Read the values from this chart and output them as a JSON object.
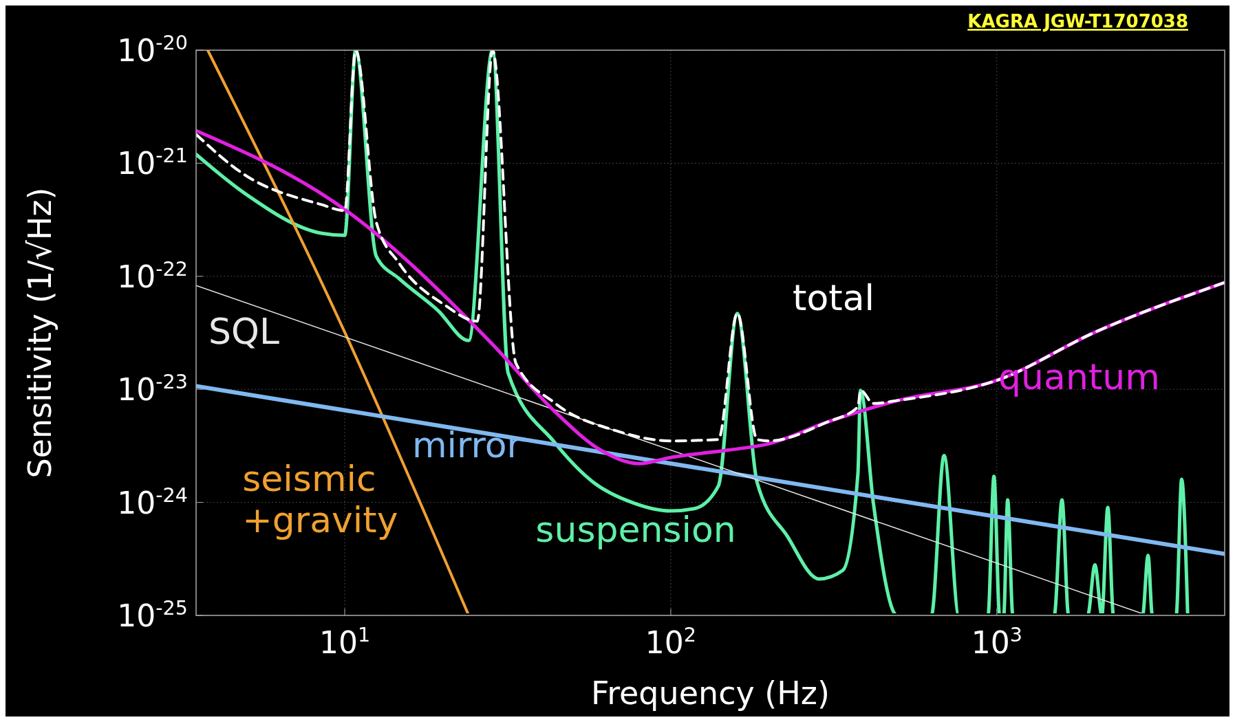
{
  "chart_data": {
    "type": "line",
    "xlabel": "Frequency (Hz)",
    "ylabel": "Sensitivity (1/√Hz)",
    "log": "xy",
    "grid": true,
    "xlim": [
      3.5,
      5000
    ],
    "xticks": [
      {
        "value": 10,
        "label": "10$^{1}$"
      },
      {
        "value": 100,
        "label": "10$^{2}$"
      },
      {
        "value": 1000,
        "label": "10$^{3}$"
      }
    ],
    "ylim": [
      1e-25,
      1e-20
    ],
    "yticks": [
      {
        "value": 1e-25,
        "label": "10$^{-25}$"
      },
      {
        "value": 1e-24,
        "label": "10$^{-24}$"
      },
      {
        "value": 1e-23,
        "label": "10$^{-23}$"
      },
      {
        "value": 1e-22,
        "label": "10$^{-22}$"
      },
      {
        "value": 1e-21,
        "label": "10$^{-21}$"
      },
      {
        "value": 1e-20,
        "label": "10$^{-20}$"
      }
    ],
    "annotations": [
      "KAGRA JGW-T1707038"
    ],
    "series": [
      {
        "name": "suspension",
        "color": "#5ef0a8",
        "line_style": "solid",
        "x": [
          3.5,
          4.9,
          8.5,
          10,
          10.8,
          12.5,
          14.7,
          19.3,
          24,
          28.4,
          31.7,
          44,
          58,
          76,
          100,
          118,
          140,
          160,
          184,
          228,
          285,
          337,
          375,
          382,
          418,
          495,
          630,
          689,
          765,
          940,
          980,
          1020,
          1050,
          1080,
          1120,
          1500,
          1585,
          1660,
          1900,
          2000,
          2100,
          2190,
          2280,
          2800,
          2910,
          3000,
          3550,
          3690,
          3850
        ],
        "values": [
          1.2e-21,
          5.5e-22,
          2.4e-22,
          2.3e-22,
          1e-20,
          1.5e-22,
          9.5e-23,
          5e-23,
          2.7e-23,
          1e-20,
          1.4e-23,
          3.4e-24,
          1.5e-24,
          1e-24,
          8.4e-25,
          8.8e-25,
          1.4e-24,
          4.7e-23,
          1.5e-24,
          5e-25,
          2.1e-25,
          2.5e-25,
          1.8e-24,
          9.8e-24,
          1e-24,
          1e-25,
          1e-25,
          2.6e-24,
          1e-25,
          1e-25,
          1.7e-24,
          1e-25,
          1e-25,
          1.05e-24,
          1e-25,
          1e-25,
          1.05e-24,
          1e-25,
          1e-25,
          2.8e-25,
          1e-25,
          9e-25,
          1e-25,
          1e-25,
          3.4e-25,
          1e-25,
          1e-25,
          1.6e-24,
          1e-25
        ]
      },
      {
        "name": "seismic\n+gravity",
        "color": "#f0a030",
        "line_style": "solid",
        "x": [
          3.8,
          10,
          24
        ],
        "values": [
          1e-20,
          3.2e-23,
          1e-25
        ]
      },
      {
        "name": "mirror",
        "color": "#80b8f0",
        "line_style": "solid",
        "x": [
          3.5,
          5000
        ],
        "values": [
          1.07e-23,
          3.5e-25
        ]
      },
      {
        "name": "SQL",
        "color": "#e8e8e8",
        "line_style": "solid",
        "x": [
          3.5,
          2900
        ],
        "values": [
          8.3e-23,
          1e-25
        ]
      },
      {
        "name": "quantum",
        "color": "#e020e0",
        "line_style": "solid",
        "x": [
          3.5,
          10,
          28.4,
          44,
          61,
          80,
          100,
          150,
          200,
          300,
          500,
          1000,
          2000,
          5000
        ],
        "values": [
          1.94e-21,
          3.9e-22,
          2.5e-23,
          6.4e-24,
          2.9e-24,
          2.2e-24,
          2.5e-24,
          2.9e-24,
          3.3e-24,
          5.1e-24,
          8e-24,
          1.2e-23,
          3.2e-23,
          8.8e-23
        ]
      },
      {
        "name": "total",
        "color": "#ffffff",
        "line_style": "dashed",
        "x": [
          3.5,
          4.9,
          8.5,
          10,
          10.8,
          12.5,
          14.7,
          20.4,
          25.5,
          28.4,
          33.5,
          44,
          68,
          100,
          140,
          160,
          184,
          200,
          300,
          375,
          382,
          418,
          500,
          1000,
          2000,
          5000
        ],
        "values": [
          1.8e-21,
          8e-22,
          4.3e-22,
          3.8e-22,
          1e-20,
          3e-22,
          1.3e-22,
          5.5e-23,
          4e-23,
          1e-20,
          1.7e-23,
          7.6e-24,
          4.3e-24,
          3.5e-24,
          3.6e-24,
          4.7e-23,
          3.6e-24,
          3.5e-24,
          5.1e-24,
          7e-24,
          9.8e-24,
          7.5e-24,
          8e-24,
          1.2e-23,
          3.2e-23,
          8.8e-23
        ]
      }
    ]
  }
}
